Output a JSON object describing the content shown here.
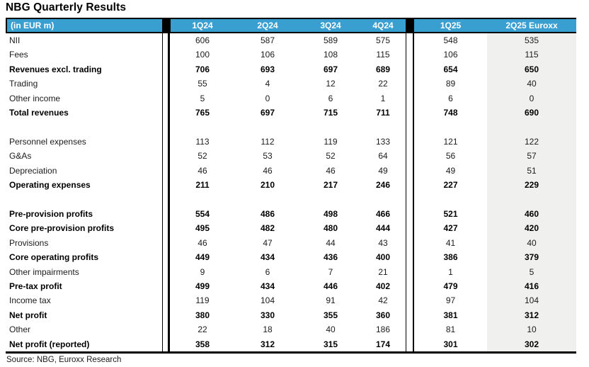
{
  "title": "NBG Quarterly Results",
  "source_note": "Source: NBG, Euroxx Research",
  "colors": {
    "header_bg": "#399fd0",
    "header_text": "#ffffff",
    "highlight_column_bg": "#f0f0ef",
    "border": "#000000"
  },
  "table": {
    "unit_label": "(in EUR m)",
    "columns": [
      "1Q24",
      "2Q24",
      "3Q24",
      "4Q24",
      "1Q25",
      "2Q25 Euroxx"
    ],
    "highlighted_column": "2Q25 Euroxx",
    "rows": [
      {
        "label": "NII",
        "bold": false,
        "values": [
          606,
          587,
          589,
          575,
          548,
          535
        ]
      },
      {
        "label": "Fees",
        "bold": false,
        "values": [
          100,
          106,
          108,
          115,
          106,
          115
        ]
      },
      {
        "label": "Revenues excl. trading",
        "bold": true,
        "values": [
          706,
          693,
          697,
          689,
          654,
          650
        ]
      },
      {
        "label": "Trading",
        "bold": false,
        "values": [
          55,
          4,
          12,
          22,
          89,
          40
        ]
      },
      {
        "label": "Other income",
        "bold": false,
        "values": [
          5,
          0,
          6,
          1,
          6,
          0
        ]
      },
      {
        "label": "Total revenues",
        "bold": true,
        "values": [
          765,
          697,
          715,
          711,
          748,
          690
        ]
      },
      {
        "spacer": true
      },
      {
        "label": "Personnel expenses",
        "bold": false,
        "values": [
          113,
          112,
          119,
          133,
          121,
          122
        ]
      },
      {
        "label": "G&As",
        "bold": false,
        "values": [
          52,
          53,
          52,
          64,
          56,
          57
        ]
      },
      {
        "label": "Depreciation",
        "bold": false,
        "values": [
          46,
          46,
          46,
          49,
          49,
          51
        ]
      },
      {
        "label": "Operating expenses",
        "bold": true,
        "values": [
          211,
          210,
          217,
          246,
          227,
          229
        ]
      },
      {
        "spacer": true
      },
      {
        "label": "Pre-provision profits",
        "bold": true,
        "values": [
          554,
          486,
          498,
          466,
          521,
          460
        ]
      },
      {
        "label": "Core pre-provision profits",
        "bold": true,
        "values": [
          495,
          482,
          480,
          444,
          427,
          420
        ]
      },
      {
        "label": "Provisions",
        "bold": false,
        "values": [
          46,
          47,
          44,
          43,
          41,
          40
        ]
      },
      {
        "label": "Core operating profits",
        "bold": true,
        "values": [
          449,
          434,
          436,
          400,
          386,
          379
        ]
      },
      {
        "label": "Other impairments",
        "bold": false,
        "values": [
          9,
          6,
          7,
          21,
          1,
          5
        ]
      },
      {
        "label": "Pre-tax profit",
        "bold": true,
        "values": [
          499,
          434,
          446,
          402,
          479,
          416
        ]
      },
      {
        "label": "Income tax",
        "bold": false,
        "values": [
          119,
          104,
          91,
          42,
          97,
          104
        ]
      },
      {
        "label": "Net profit",
        "bold": true,
        "values": [
          380,
          330,
          355,
          360,
          381,
          312
        ]
      },
      {
        "label": "Other",
        "bold": false,
        "values": [
          22,
          18,
          40,
          186,
          81,
          10
        ]
      },
      {
        "label": "Net profit (reported)",
        "bold": true,
        "values": [
          358,
          312,
          315,
          174,
          301,
          302
        ]
      }
    ]
  }
}
